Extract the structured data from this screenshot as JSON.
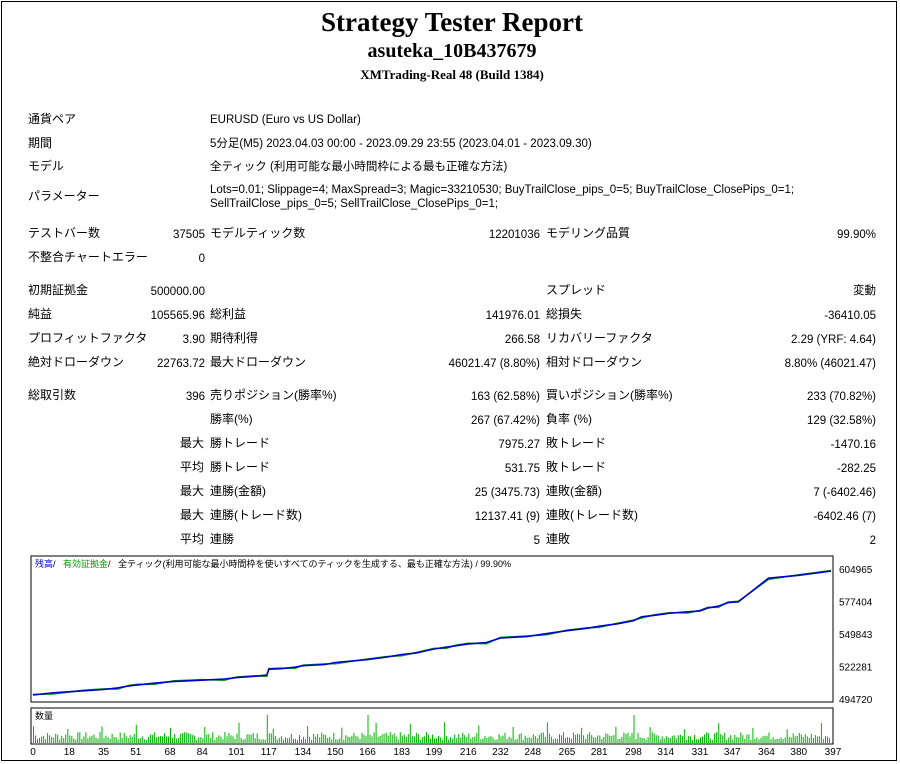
{
  "header": {
    "title": "Strategy Tester Report",
    "ea": "asuteka_10B437679",
    "server": "XMTrading-Real 48 (Build 1384)"
  },
  "info": {
    "pair_label": "通貨ペア",
    "pair": "EURUSD (Euro vs US Dollar)",
    "period_label": "期間",
    "period": "5分足(M5) 2023.04.03 00:00 - 2023.09.29 23:55 (2023.04.01 - 2023.09.30)",
    "model_label": "モデル",
    "model": "全ティック (利用可能な最小時間枠による最も正確な方法)",
    "params_label": "パラメーター",
    "params_1": "Lots=0.01; Slippage=4; MaxSpread=3; Magic=33210530; BuyTrailClose_pips_0=5; BuyTrailClose_ClosePips_0=1;",
    "params_2": "SellTrailClose_pips_0=5; SellTrailClose_ClosePips_0=1;"
  },
  "stats": {
    "bars_label": "テストバー数",
    "bars": "37505",
    "ticks_label": "モデルティック数",
    "ticks": "12201036",
    "quality_label": "モデリング品質",
    "quality": "99.90%",
    "mismatch_label": "不整合チャートエラー",
    "mismatch": "0",
    "deposit_label": "初期証拠金",
    "deposit": "500000.00",
    "spread_label": "スプレッド",
    "spread": "変動",
    "net_label": "純益",
    "net": "105565.96",
    "gross_profit_label": "総利益",
    "gross_profit": "141976.01",
    "gross_loss_label": "総損失",
    "gross_loss": "-36410.05",
    "pf_label": "プロフィットファクタ",
    "pf": "3.90",
    "payoff_label": "期待利得",
    "payoff": "266.58",
    "rf_label": "リカバリーファクタ",
    "rf": "2.29 (YRF: 4.64)",
    "abs_dd_label": "絶対ドローダウン",
    "abs_dd": "22763.72",
    "max_dd_label": "最大ドローダウン",
    "max_dd": "46021.47 (8.80%)",
    "rel_dd_label": "相対ドローダウン",
    "rel_dd": "8.80% (46021.47)",
    "trades_label": "総取引数",
    "trades": "396",
    "short_label": "売りポジション(勝率%)",
    "short": "163 (62.58%)",
    "long_label": "買いポジション(勝率%)",
    "long": "233 (70.82%)",
    "winrate_label": "勝率(%)",
    "winrate": "267 (67.42%)",
    "lossrate_label": "負率 (%)",
    "lossrate": "129 (32.58%)",
    "max_label": "最大",
    "avg_label": "平均",
    "win_trade_label": "勝トレード",
    "loss_trade_label": "敗トレード",
    "max_win": "7975.27",
    "max_loss": "-1470.16",
    "avg_win": "531.75",
    "avg_loss": "-282.25",
    "cons_win_amt_label": "連勝(金額)",
    "cons_win_amt": "25 (3475.73)",
    "cons_loss_amt_label": "連敗(金額)",
    "cons_loss_amt": "7 (-6402.46)",
    "cons_win_cnt_label": "連勝(トレード数)",
    "cons_win_cnt": "12137.41 (9)",
    "cons_loss_cnt_label": "連敗(トレード数)",
    "cons_loss_cnt": "-6402.46 (7)",
    "cons_win_label": "連勝",
    "cons_win": "5",
    "cons_loss_label": "連敗",
    "cons_loss": "2"
  },
  "chart_legend": {
    "balance": "残高",
    "sep1": " / ",
    "equity": "有効証拠金",
    "sep2": " / ",
    "desc": "全ティック(利用可能な最小時間枠を使いすべてのティックを生成する、最も正確な方法) / 99.90%"
  },
  "volume_label": "数量",
  "colors": {
    "balance": "#0000c8",
    "equity": "#00a000",
    "volume": "#00b400"
  },
  "chart_data": {
    "type": "line",
    "ylim": [
      494720,
      604965
    ],
    "yticks": [
      "604965",
      "577404",
      "549843",
      "522281",
      "494720"
    ],
    "xticks": [
      "0",
      "18",
      "35",
      "51",
      "68",
      "84",
      "101",
      "117",
      "134",
      "150",
      "166",
      "183",
      "199",
      "216",
      "232",
      "248",
      "265",
      "281",
      "298",
      "314",
      "331",
      "347",
      "364",
      "380",
      "397"
    ],
    "xlim": [
      0,
      396
    ],
    "series": [
      {
        "values": [
          [
            0,
            499000
          ],
          [
            10,
            500800
          ],
          [
            25,
            502500
          ],
          [
            35,
            503600
          ],
          [
            42,
            505000
          ],
          [
            48,
            506800
          ],
          [
            52,
            507500
          ],
          [
            60,
            509000
          ],
          [
            70,
            510500
          ],
          [
            84,
            511500
          ],
          [
            95,
            512500
          ],
          [
            101,
            513700
          ],
          [
            110,
            514800
          ],
          [
            116,
            515800
          ],
          [
            117,
            520800
          ],
          [
            123,
            521300
          ],
          [
            130,
            522500
          ],
          [
            134,
            523800
          ],
          [
            145,
            524800
          ],
          [
            150,
            526500
          ],
          [
            166,
            529000
          ],
          [
            175,
            531000
          ],
          [
            183,
            533300
          ],
          [
            190,
            534500
          ],
          [
            199,
            538000
          ],
          [
            205,
            539500
          ],
          [
            210,
            540800
          ],
          [
            216,
            542300
          ],
          [
            225,
            543500
          ],
          [
            232,
            547300
          ],
          [
            245,
            548500
          ],
          [
            255,
            551000
          ],
          [
            265,
            553500
          ],
          [
            275,
            555500
          ],
          [
            281,
            557300
          ],
          [
            290,
            559300
          ],
          [
            298,
            562000
          ],
          [
            302,
            565300
          ],
          [
            308,
            566500
          ],
          [
            316,
            568300
          ],
          [
            325,
            569500
          ],
          [
            331,
            570300
          ],
          [
            335,
            572800
          ],
          [
            340,
            574300
          ],
          [
            345,
            577300
          ],
          [
            350,
            577900
          ],
          [
            365,
            598000
          ],
          [
            380,
            600500
          ],
          [
            396,
            604000
          ]
        ]
      }
    ],
    "volume": {
      "label": "数量"
    }
  }
}
